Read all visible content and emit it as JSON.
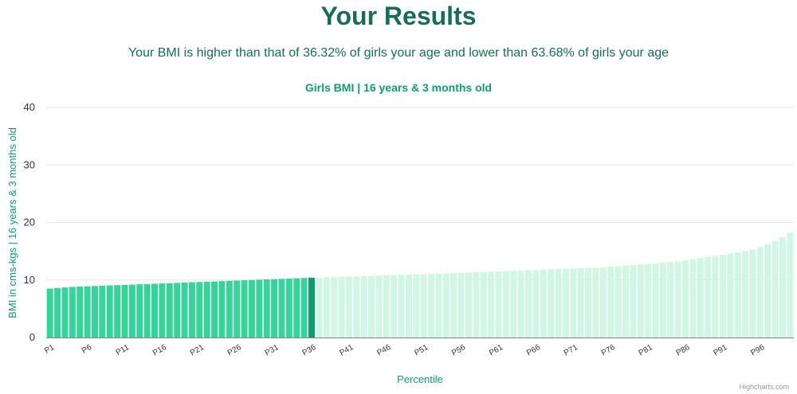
{
  "page": {
    "heading": "Your Results",
    "summary": "Your BMI is higher than that of 36.32% of girls your age and lower than 63.68% of girls your age",
    "credits": "Highcharts.com"
  },
  "colors": {
    "heading": "#176d57",
    "title": "#139b6e",
    "bar_below": "#36d39b",
    "bar_user": "#129a6c",
    "bar_above": "#d0f7e6",
    "grid": "#e6e6e6"
  },
  "chart_data": {
    "type": "bar",
    "title": "Girls BMI | 16 years & 3 months old",
    "xlabel": "Percentile",
    "ylabel": "BMI in cms-kgs | 16 years & 3 months old",
    "ylim": [
      0,
      40
    ],
    "yticks": [
      0,
      10,
      20,
      30,
      40
    ],
    "grid": true,
    "highlight_index": 35,
    "below_count": 35,
    "categories": [
      "P1",
      "P2",
      "P3",
      "P4",
      "P5",
      "P6",
      "P7",
      "P8",
      "P9",
      "P10",
      "P11",
      "P12",
      "P13",
      "P14",
      "P15",
      "P16",
      "P17",
      "P18",
      "P19",
      "P20",
      "P21",
      "P22",
      "P23",
      "P24",
      "P25",
      "P26",
      "P27",
      "P28",
      "P29",
      "P30",
      "P31",
      "P32",
      "P33",
      "P34",
      "P35",
      "P36",
      "P37",
      "P38",
      "P39",
      "P40",
      "P41",
      "P42",
      "P43",
      "P44",
      "P45",
      "P46",
      "P47",
      "P48",
      "P49",
      "P50",
      "P51",
      "P52",
      "P53",
      "P54",
      "P55",
      "P56",
      "P57",
      "P58",
      "P59",
      "P60",
      "P61",
      "P62",
      "P63",
      "P64",
      "P65",
      "P66",
      "P67",
      "P68",
      "P69",
      "P70",
      "P71",
      "P72",
      "P73",
      "P74",
      "P75",
      "P76",
      "P77",
      "P78",
      "P79",
      "P80",
      "P81",
      "P82",
      "P83",
      "P84",
      "P85",
      "P86",
      "P87",
      "P88",
      "P89",
      "P90",
      "P91",
      "P92",
      "P93",
      "P94",
      "P95",
      "P96",
      "P97",
      "P98",
      "P99",
      "P100"
    ],
    "tick_labels": [
      "P1",
      "P6",
      "P11",
      "P16",
      "P21",
      "P26",
      "P31",
      "P36",
      "P41",
      "P46",
      "P51",
      "P56",
      "P61",
      "P66",
      "P71",
      "P76",
      "P81",
      "P86",
      "P91",
      "P96"
    ],
    "values": [
      8.5,
      8.6,
      8.7,
      8.8,
      8.85,
      8.9,
      8.95,
      9.0,
      9.05,
      9.1,
      9.15,
      9.2,
      9.25,
      9.3,
      9.35,
      9.4,
      9.45,
      9.5,
      9.55,
      9.6,
      9.65,
      9.7,
      9.75,
      9.8,
      9.85,
      9.9,
      9.95,
      10.0,
      10.05,
      10.1,
      10.15,
      10.2,
      10.25,
      10.3,
      10.35,
      10.4,
      10.4,
      10.45,
      10.5,
      10.55,
      10.6,
      10.6,
      10.65,
      10.7,
      10.75,
      10.8,
      10.85,
      10.9,
      10.95,
      11.0,
      11.0,
      11.05,
      11.1,
      11.15,
      11.2,
      11.25,
      11.3,
      11.35,
      11.4,
      11.45,
      11.5,
      11.55,
      11.6,
      11.65,
      11.7,
      11.75,
      11.8,
      11.85,
      11.9,
      11.95,
      12.0,
      12.05,
      12.1,
      12.15,
      12.2,
      12.3,
      12.4,
      12.5,
      12.6,
      12.7,
      12.8,
      12.9,
      13.0,
      13.1,
      13.2,
      13.4,
      13.6,
      13.8,
      14.0,
      14.2,
      14.4,
      14.6,
      14.8,
      15.0,
      15.3,
      15.7,
      16.2,
      16.8,
      17.4,
      18.2
    ]
  }
}
